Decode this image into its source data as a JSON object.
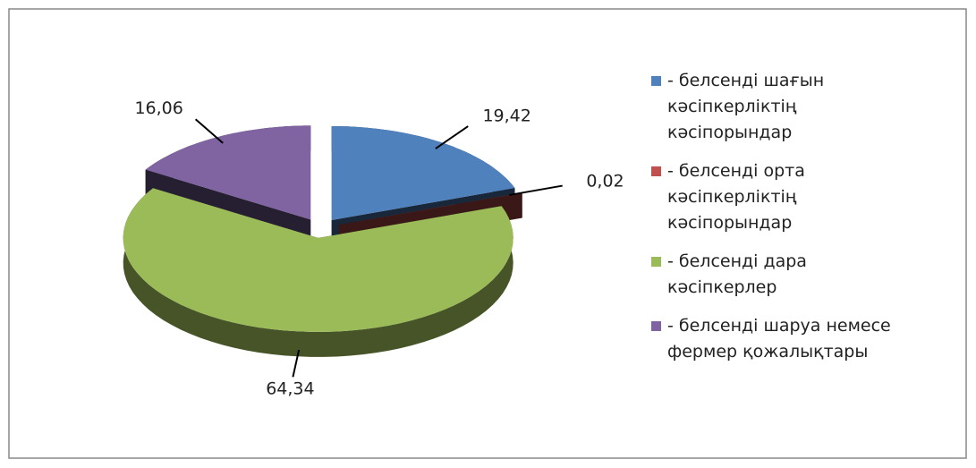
{
  "chart_data": {
    "type": "pie3d",
    "categories": [
      "- белсенді шағын кәсіпкерліктің кәсіпорындар",
      "- белсенді орта кәсіпкерліктің кәсіпорындар",
      "- белсенді дара кәсіпкерлер",
      "- белсенді шаруа немесе фермер қожалықтары"
    ],
    "values": [
      19.42,
      0.02,
      64.34,
      16.06
    ],
    "value_labels": [
      "19,42",
      "0,02",
      "64,34",
      "16,06"
    ],
    "colors": [
      "#4f81bd",
      "#c0504d",
      "#9bbb59",
      "#8064a2"
    ],
    "legend": "right"
  }
}
